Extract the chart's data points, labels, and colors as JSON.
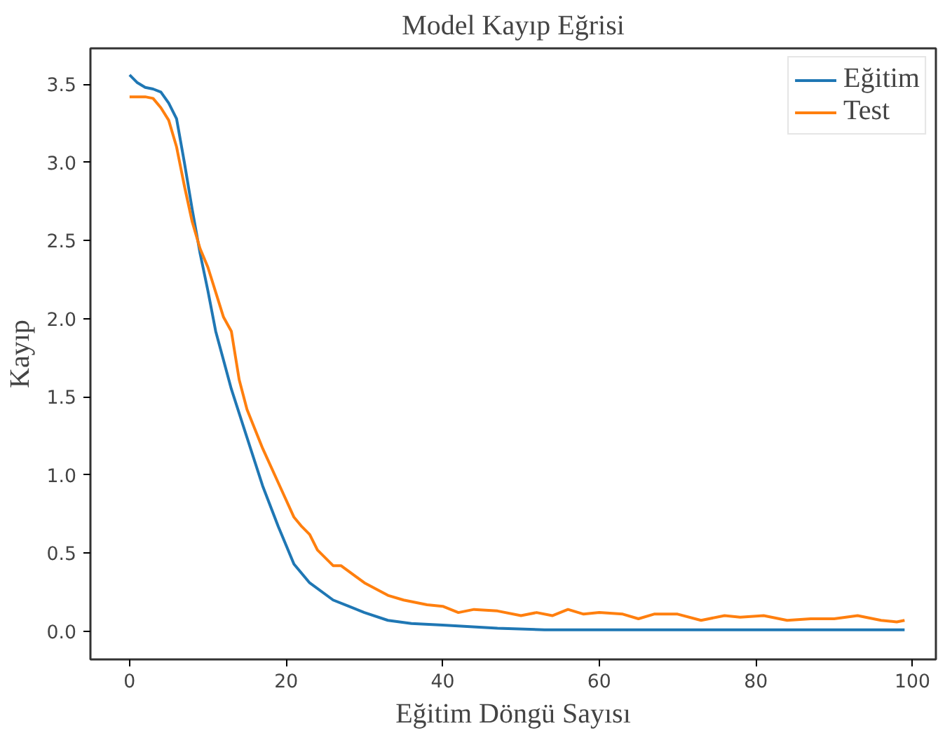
{
  "chart_data": {
    "type": "line",
    "title": "Model Kayıp Eğrisi",
    "xlabel": "Eğitim Döngü Sayısı",
    "ylabel": "Kayıp",
    "xlim": [
      -5,
      103
    ],
    "ylim": [
      -0.18,
      3.73
    ],
    "xticks": [
      0,
      20,
      40,
      60,
      80,
      100
    ],
    "yticks": [
      {
        "value": 0,
        "label": "0.0"
      },
      0.5,
      {
        "value": 1,
        "label": "1.0"
      },
      1.5,
      {
        "value": 2,
        "label": "2.0"
      },
      2.5,
      {
        "value": 3,
        "label": "3.0"
      },
      3.5
    ],
    "grid": false,
    "legend": "top right",
    "line_style": "solid",
    "marker": "none",
    "series": [
      {
        "name": "Eğitim",
        "color": "#1f77b4",
        "x": [
          0,
          1,
          2,
          3,
          4,
          5,
          6,
          7,
          8,
          9,
          10,
          11,
          13,
          15,
          17,
          19,
          21,
          23,
          26,
          28,
          30,
          33,
          36,
          40,
          47,
          53,
          60,
          70,
          80,
          90,
          99
        ],
        "values": [
          3.56,
          3.51,
          3.48,
          3.47,
          3.45,
          3.38,
          3.28,
          3.0,
          2.7,
          2.42,
          2.18,
          1.92,
          1.55,
          1.24,
          0.93,
          0.67,
          0.43,
          0.31,
          0.2,
          0.16,
          0.12,
          0.07,
          0.05,
          0.04,
          0.02,
          0.01,
          0.01,
          0.01,
          0.01,
          0.01,
          0.01
        ]
      },
      {
        "name": "Test",
        "color": "#ff7f0e",
        "x": [
          0,
          1,
          2,
          3,
          4,
          5,
          6,
          7,
          8,
          9,
          10,
          11,
          12,
          13,
          14,
          15,
          17,
          19,
          21,
          22,
          23,
          24,
          26,
          27,
          30,
          33,
          35,
          37,
          38,
          40,
          42,
          44,
          47,
          50,
          52,
          54,
          56,
          58,
          60,
          63,
          65,
          67,
          70,
          73,
          76,
          78,
          81,
          84,
          87,
          90,
          93,
          96,
          98,
          99
        ],
        "values": [
          3.42,
          3.42,
          3.42,
          3.41,
          3.35,
          3.27,
          3.1,
          2.85,
          2.62,
          2.45,
          2.33,
          2.17,
          2.01,
          1.92,
          1.61,
          1.42,
          1.17,
          0.95,
          0.73,
          0.67,
          0.62,
          0.52,
          0.42,
          0.42,
          0.31,
          0.23,
          0.2,
          0.18,
          0.17,
          0.16,
          0.12,
          0.14,
          0.13,
          0.1,
          0.12,
          0.1,
          0.14,
          0.11,
          0.12,
          0.11,
          0.08,
          0.11,
          0.11,
          0.07,
          0.1,
          0.09,
          0.1,
          0.07,
          0.08,
          0.08,
          0.1,
          0.07,
          0.06,
          0.07
        ]
      }
    ]
  }
}
